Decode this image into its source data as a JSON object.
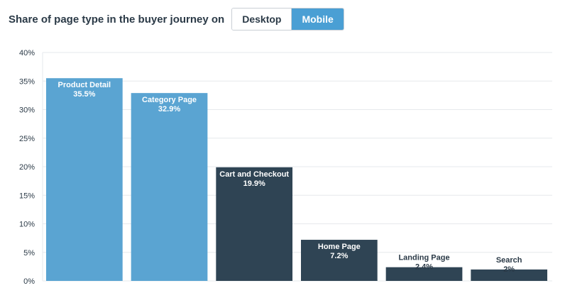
{
  "header": {
    "title": "Share of page type in the buyer journey on",
    "toggle": {
      "desktop_label": "Desktop",
      "mobile_label": "Mobile",
      "selected": "Mobile"
    }
  },
  "colors": {
    "light": "#5aa4d2",
    "dark": "#2f4454",
    "grid": "#e6e9ec",
    "label_dark": "#2b3a47"
  },
  "chart_data": {
    "type": "bar",
    "title": "",
    "xlabel": "",
    "ylabel": "",
    "ylim": [
      0,
      40
    ],
    "y_ticks": [
      "0%",
      "5%",
      "10%",
      "15%",
      "20%",
      "25%",
      "30%",
      "35%",
      "40%"
    ],
    "grid": true,
    "categories": [
      "Product Detail",
      "Category Page",
      "Cart and Checkout",
      "Home Page",
      "Landing Page",
      "Search"
    ],
    "values": [
      35.5,
      32.9,
      19.9,
      7.2,
      2.4,
      2
    ],
    "value_labels": [
      "35.5%",
      "32.9%",
      "19.9%",
      "7.2%",
      "2.4%",
      "2%"
    ],
    "bar_colors": [
      "light",
      "light",
      "dark",
      "dark",
      "dark",
      "dark"
    ]
  }
}
